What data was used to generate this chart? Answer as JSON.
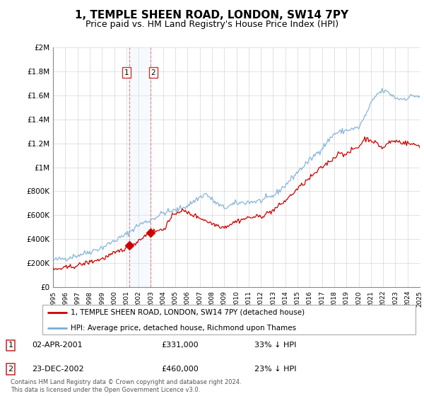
{
  "title": "1, TEMPLE SHEEN ROAD, LONDON, SW14 7PY",
  "subtitle": "Price paid vs. HM Land Registry's House Price Index (HPI)",
  "title_fontsize": 11,
  "subtitle_fontsize": 9,
  "ylim": [
    0,
    2000000
  ],
  "yticks": [
    0,
    200000,
    400000,
    600000,
    800000,
    1000000,
    1200000,
    1400000,
    1600000,
    1800000,
    2000000
  ],
  "ytick_labels": [
    "£0",
    "£200K",
    "£400K",
    "£600K",
    "£800K",
    "£1M",
    "£1.2M",
    "£1.4M",
    "£1.6M",
    "£1.8M",
    "£2M"
  ],
  "legend_line1": "1, TEMPLE SHEEN ROAD, LONDON, SW14 7PY (detached house)",
  "legend_line2": "HPI: Average price, detached house, Richmond upon Thames",
  "sale1_label": "1",
  "sale1_date": "02-APR-2001",
  "sale1_price": "£331,000",
  "sale1_hpi": "33% ↓ HPI",
  "sale2_label": "2",
  "sale2_date": "23-DEC-2002",
  "sale2_price": "£460,000",
  "sale2_hpi": "23% ↓ HPI",
  "footer": "Contains HM Land Registry data © Crown copyright and database right 2024.\nThis data is licensed under the Open Government Licence v3.0.",
  "line_color_red": "#cc0000",
  "line_color_blue": "#7aaed6",
  "vline_color": "#e88080",
  "span_color": "#ddeeff",
  "marker_color": "#cc0000",
  "x_start_year": 1995,
  "x_end_year": 2025,
  "sale1_x": 2001.25,
  "sale2_x": 2002.97,
  "hpi_x": [
    1995,
    1996,
    1997,
    1998,
    1999,
    2000,
    2001,
    2001.5,
    2002,
    2003,
    2004,
    2005,
    2006,
    2007,
    2007.5,
    2008,
    2008.5,
    2009,
    2010,
    2011,
    2012,
    2013,
    2014,
    2015,
    2016,
    2017,
    2018,
    2019,
    2020,
    2020.5,
    2021,
    2021.5,
    2022,
    2022.5,
    2023,
    2023.5,
    2024,
    2024.5,
    2025
  ],
  "hpi_y": [
    225000,
    240000,
    265000,
    295000,
    330000,
    385000,
    440000,
    480000,
    520000,
    560000,
    620000,
    640000,
    680000,
    750000,
    780000,
    730000,
    690000,
    660000,
    700000,
    710000,
    720000,
    760000,
    850000,
    960000,
    1060000,
    1160000,
    1280000,
    1310000,
    1330000,
    1420000,
    1530000,
    1610000,
    1640000,
    1620000,
    1580000,
    1570000,
    1580000,
    1600000,
    1590000
  ],
  "red_x": [
    1995,
    1996,
    1997,
    1998,
    1999,
    2000,
    2001,
    2001.25,
    2001.5,
    2002,
    2002.97,
    2003,
    2004,
    2005,
    2005.5,
    2006,
    2006.5,
    2007,
    2008,
    2009,
    2010,
    2011,
    2012,
    2013,
    2014,
    2015,
    2016,
    2017,
    2018,
    2018.5,
    2019,
    2019.5,
    2020,
    2020.5,
    2021,
    2022,
    2022.5,
    2023,
    2024,
    2025
  ],
  "red_y": [
    145000,
    160000,
    180000,
    210000,
    235000,
    280000,
    330000,
    331000,
    350000,
    390000,
    460000,
    460000,
    480000,
    620000,
    640000,
    620000,
    600000,
    580000,
    530000,
    500000,
    550000,
    580000,
    590000,
    640000,
    720000,
    820000,
    910000,
    1000000,
    1080000,
    1130000,
    1100000,
    1150000,
    1170000,
    1240000,
    1230000,
    1160000,
    1210000,
    1220000,
    1200000,
    1180000
  ]
}
